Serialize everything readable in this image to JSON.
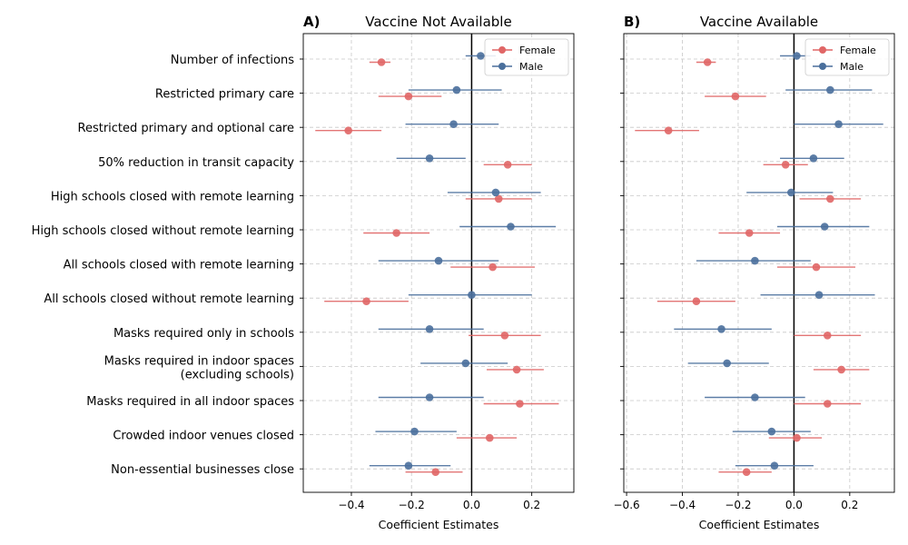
{
  "chart_data": [
    {
      "type": "scatter",
      "panel_letter": "A)",
      "title": "Vaccine Not Available",
      "xlabel": "Coefficient Estimates",
      "xlim": [
        -0.56,
        0.34
      ],
      "xticks": [
        -0.4,
        -0.2,
        0.0,
        0.2
      ],
      "xtick_labels": [
        "−0.4",
        "−0.2",
        "0.0",
        "0.2"
      ],
      "show_category_labels": true,
      "grid": true,
      "legend": "top-right",
      "categories": [
        "Number of infections",
        "Restricted primary care",
        "Restricted primary and optional care",
        "50% reduction in transit capacity",
        "High schools closed with remote learning",
        "High schools closed without remote learning",
        "All schools closed with remote learning",
        "All schools closed without remote learning",
        "Masks required only in schools",
        "Masks required in indoor spaces\n(excluding schools)",
        "Masks required in all indoor spaces",
        "Crowded indoor venues closed",
        "Non-essential businesses close"
      ],
      "series": [
        {
          "name": "Female",
          "color": "#e06666",
          "values": [
            -0.3,
            -0.21,
            -0.41,
            0.12,
            0.09,
            -0.25,
            0.07,
            -0.35,
            0.11,
            0.15,
            0.16,
            0.06,
            -0.12
          ],
          "lower": [
            -0.34,
            -0.31,
            -0.52,
            0.04,
            -0.02,
            -0.36,
            -0.07,
            -0.49,
            -0.01,
            0.05,
            0.04,
            -0.05,
            -0.22
          ],
          "upper": [
            -0.27,
            -0.1,
            -0.3,
            0.2,
            0.2,
            -0.14,
            0.21,
            -0.21,
            0.23,
            0.24,
            0.29,
            0.15,
            -0.03
          ]
        },
        {
          "name": "Male",
          "color": "#4a6f9c",
          "values": [
            0.03,
            -0.05,
            -0.06,
            -0.14,
            0.08,
            0.13,
            -0.11,
            0.0,
            -0.14,
            -0.02,
            -0.14,
            -0.19,
            -0.21
          ],
          "lower": [
            -0.02,
            -0.21,
            -0.22,
            -0.25,
            -0.08,
            -0.04,
            -0.31,
            -0.21,
            -0.31,
            -0.17,
            -0.31,
            -0.32,
            -0.34
          ],
          "upper": [
            0.08,
            0.1,
            0.09,
            -0.02,
            0.23,
            0.28,
            0.09,
            0.2,
            0.04,
            0.12,
            0.04,
            -0.05,
            -0.07
          ]
        }
      ]
    },
    {
      "type": "scatter",
      "panel_letter": "B)",
      "title": "Vaccine Available",
      "xlabel": "Coefficient Estimates",
      "xlim": [
        -0.61,
        0.36
      ],
      "xticks": [
        -0.6,
        -0.4,
        -0.2,
        0.0,
        0.2
      ],
      "xtick_labels": [
        "−0.6",
        "−0.4",
        "−0.2",
        "0.0",
        "0.2"
      ],
      "show_category_labels": false,
      "grid": true,
      "legend": "top-right",
      "series": [
        {
          "name": "Female",
          "color": "#e06666",
          "values": [
            -0.31,
            -0.21,
            -0.45,
            -0.03,
            0.13,
            -0.16,
            0.08,
            -0.35,
            0.12,
            0.17,
            0.12,
            0.01,
            -0.17
          ],
          "lower": [
            -0.35,
            -0.32,
            -0.57,
            -0.11,
            0.02,
            -0.27,
            -0.06,
            -0.49,
            0.0,
            0.07,
            0.0,
            -0.09,
            -0.27
          ],
          "upper": [
            -0.28,
            -0.1,
            -0.34,
            0.05,
            0.24,
            -0.05,
            0.22,
            -0.21,
            0.24,
            0.27,
            0.24,
            0.1,
            -0.08
          ]
        },
        {
          "name": "Male",
          "color": "#4a6f9c",
          "values": [
            0.01,
            0.13,
            0.16,
            0.07,
            -0.01,
            0.11,
            -0.14,
            0.09,
            -0.26,
            -0.24,
            -0.14,
            -0.08,
            -0.07
          ],
          "lower": [
            -0.05,
            -0.03,
            0.0,
            -0.05,
            -0.17,
            -0.06,
            -0.35,
            -0.12,
            -0.43,
            -0.38,
            -0.32,
            -0.22,
            -0.21
          ],
          "upper": [
            0.06,
            0.28,
            0.32,
            0.18,
            0.14,
            0.27,
            0.06,
            0.29,
            -0.08,
            -0.09,
            0.04,
            0.06,
            0.07
          ]
        }
      ]
    }
  ]
}
